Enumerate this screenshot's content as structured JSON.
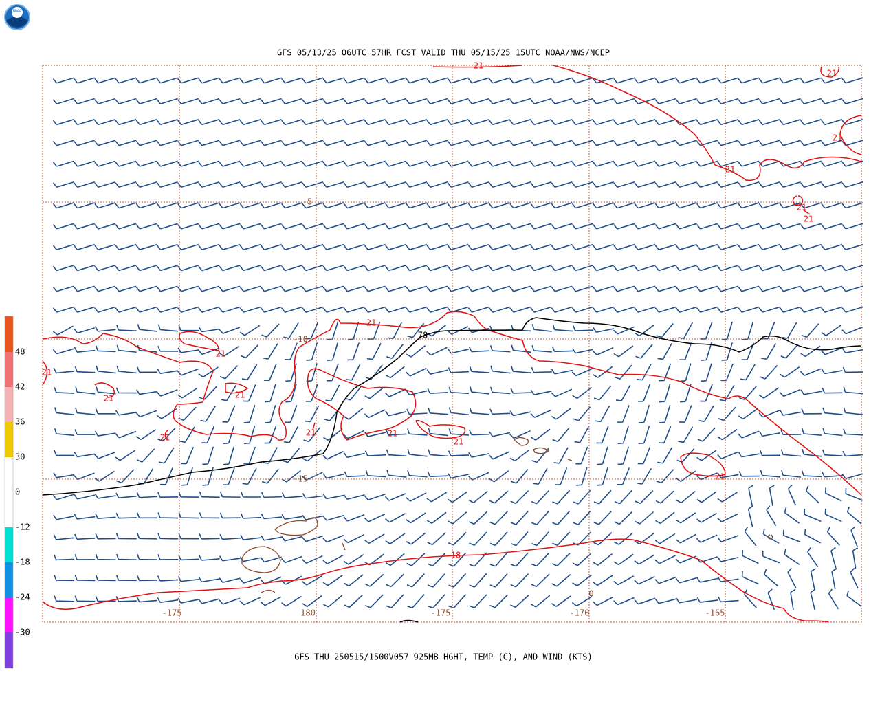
{
  "header": {
    "logo": "NOAA",
    "title": "GFS 05/13/25 06UTC 57HR FCST VALID THU 05/15/25 15UTC NOAA/NWS/NCEP"
  },
  "footer": {
    "caption": "GFS THU 250515/1500V057 925MB HGHT, TEMP (C), AND WIND (KTS)"
  },
  "colorbar": {
    "labels": [
      48,
      42,
      36,
      30,
      0,
      -12,
      -18,
      -24,
      -30
    ]
  },
  "map": {
    "latitude_labels": [
      "-5",
      "-10",
      "-15"
    ],
    "longitude_labels": [
      "-175",
      "180",
      "-175",
      "-170",
      "-165"
    ],
    "contour_labels": [
      "21",
      "21",
      "21",
      "21",
      "21",
      "21",
      "21",
      "21",
      "21",
      "21",
      "21",
      "21",
      "21",
      "21",
      "21",
      "21",
      "18",
      "78",
      "0"
    ]
  }
}
